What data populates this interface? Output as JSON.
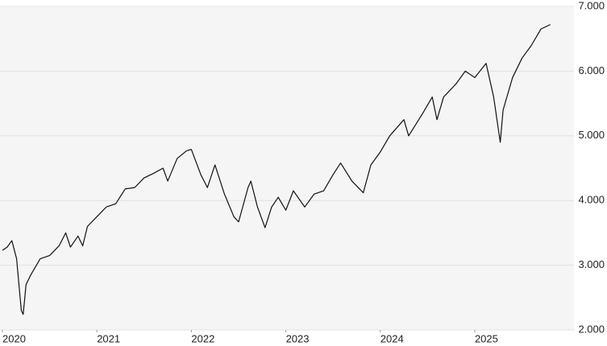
{
  "chart_data": {
    "type": "line",
    "color": "#111111",
    "grid": true,
    "x": [
      2020.0,
      2020.05,
      2020.1,
      2020.15,
      2020.2,
      2020.22,
      2020.25,
      2020.3,
      2020.4,
      2020.5,
      2020.6,
      2020.67,
      2020.72,
      2020.8,
      2020.85,
      2020.9,
      2021.0,
      2021.1,
      2021.2,
      2021.3,
      2021.4,
      2021.5,
      2021.6,
      2021.7,
      2021.75,
      2021.85,
      2021.95,
      2022.0,
      2022.1,
      2022.17,
      2022.25,
      2022.35,
      2022.45,
      2022.5,
      2022.6,
      2022.63,
      2022.7,
      2022.78,
      2022.85,
      2022.92,
      2023.0,
      2023.08,
      2023.2,
      2023.3,
      2023.4,
      2023.5,
      2023.58,
      2023.7,
      2023.82,
      2023.9,
      2024.0,
      2024.1,
      2024.25,
      2024.3,
      2024.45,
      2024.55,
      2024.6,
      2024.67,
      2024.8,
      2024.9,
      2025.0,
      2025.12,
      2025.2,
      2025.27,
      2025.3,
      2025.4,
      2025.5,
      2025.6,
      2025.7,
      2025.8
    ],
    "values": [
      3230,
      3280,
      3380,
      3100,
      2300,
      2240,
      2700,
      2850,
      3100,
      3150,
      3300,
      3500,
      3280,
      3450,
      3300,
      3600,
      3750,
      3900,
      3950,
      4180,
      4200,
      4350,
      4420,
      4500,
      4300,
      4650,
      4770,
      4790,
      4400,
      4200,
      4550,
      4100,
      3750,
      3670,
      4200,
      4300,
      3900,
      3580,
      3900,
      4050,
      3850,
      4150,
      3900,
      4100,
      4150,
      4400,
      4580,
      4300,
      4120,
      4550,
      4750,
      5000,
      5250,
      5000,
      5350,
      5600,
      5250,
      5600,
      5800,
      6000,
      5900,
      6120,
      5600,
      4900,
      5400,
      5900,
      6200,
      6400,
      6650,
      6720
    ],
    "xlim": [
      2020,
      2026.05
    ],
    "xticks": [
      2020,
      2021,
      2022,
      2023,
      2024,
      2025
    ],
    "ylim": [
      2000,
      7000
    ],
    "yticks": [
      {
        "value": 2000,
        "label": "2.000"
      },
      {
        "value": 3000,
        "label": "3.000"
      },
      {
        "value": 4000,
        "label": "4.000"
      },
      {
        "value": 5000,
        "label": "5.000"
      },
      {
        "value": 6000,
        "label": "6.000"
      },
      {
        "value": 7000,
        "label": "7.000"
      }
    ]
  }
}
